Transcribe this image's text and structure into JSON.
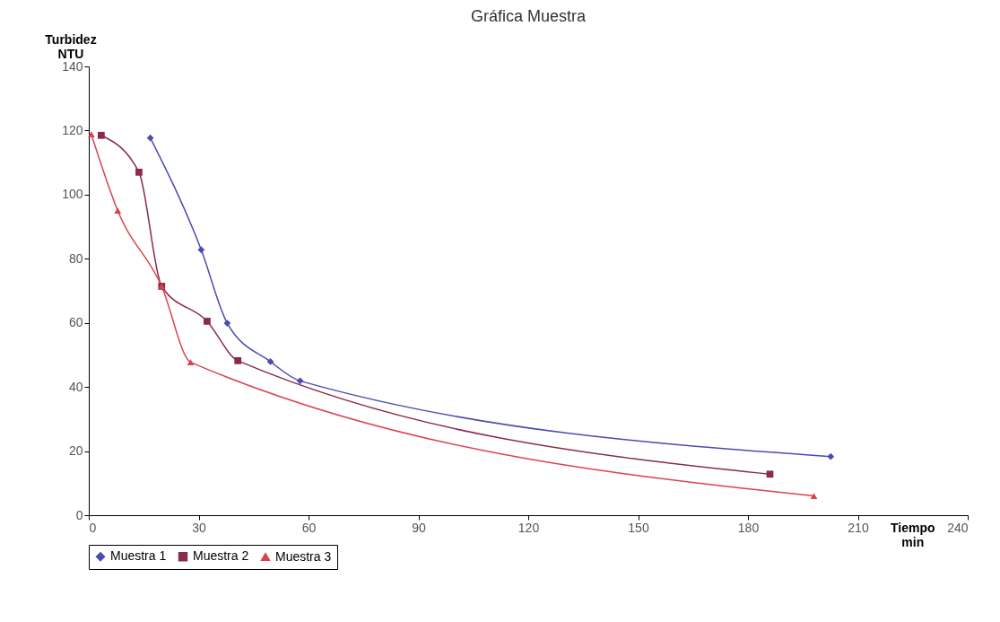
{
  "chart_data": {
    "type": "line",
    "title": "Gráfica Muestra",
    "xlabel": "Tiempo min",
    "ylabel": "Turbidez NTU",
    "xlim": [
      0,
      240
    ],
    "xticks": [
      0,
      30,
      60,
      90,
      120,
      150,
      180,
      210,
      240
    ],
    "ylim": [
      0,
      140
    ],
    "yticks": [
      0,
      20,
      40,
      60,
      80,
      100,
      120,
      140
    ],
    "grid": false,
    "legend": "bottom",
    "series": [
      {
        "name": "Muestra 1",
        "color": "#4b4bb4",
        "marker": "diamond",
        "x": [
          16.8,
          30.7,
          37.8,
          49.6,
          57.7,
          202.6
        ],
        "values": [
          117.7,
          82.8,
          59.9,
          47.9,
          41.9,
          18.3
        ]
      },
      {
        "name": "Muestra 2",
        "color": "#8b2a4a",
        "marker": "square",
        "x": [
          3.4,
          13.7,
          19.9,
          32.3,
          40.7,
          186
        ],
        "values": [
          118.5,
          107,
          71.4,
          60.5,
          48.2,
          12.8
        ]
      },
      {
        "name": "Muestra 3",
        "color": "#d9434f",
        "marker": "triangle",
        "x": [
          0.7,
          7.9,
          19.9,
          27.8,
          198
        ],
        "values": [
          118.8,
          95,
          71.4,
          47.7,
          6
        ]
      }
    ]
  }
}
